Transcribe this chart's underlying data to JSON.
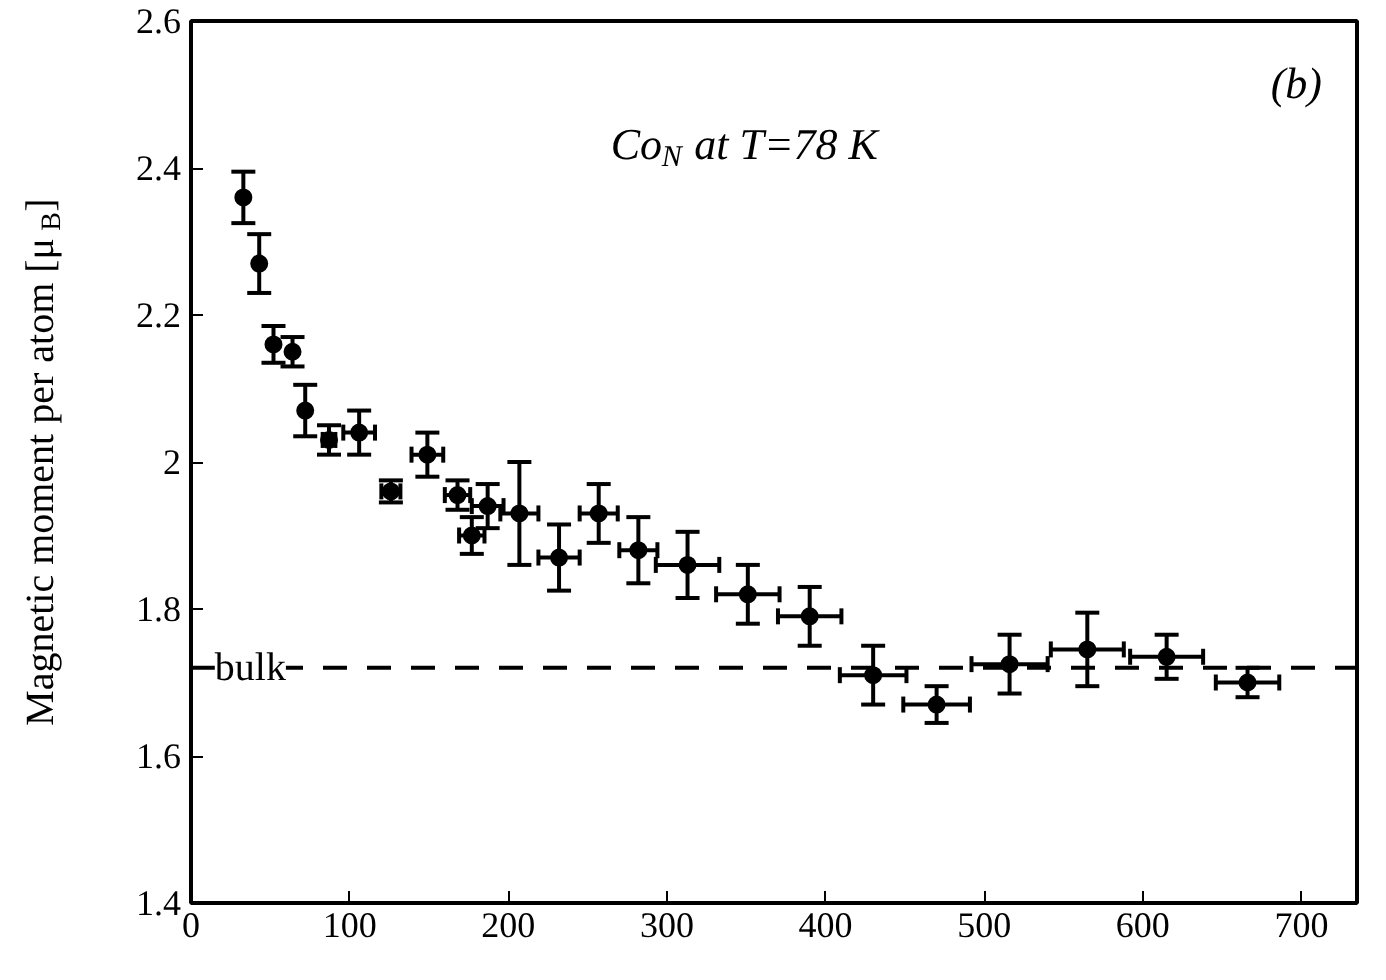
{
  "chart_data": {
    "type": "scatter",
    "ylabel": "Magnetic moment per atom [μ$_{B}$]",
    "annotations": [
      "(b)",
      "Co$_{N}$ at T=78 K"
    ],
    "x": [
      33,
      43,
      52,
      64,
      72,
      87,
      106,
      126,
      149,
      168,
      177,
      187,
      207,
      232,
      257,
      282,
      313,
      351,
      390,
      430,
      470,
      516,
      565,
      615,
      666
    ],
    "series": [
      {
        "color": "#000000",
        "values": [
          2.36,
          2.27,
          2.16,
          2.15,
          2.07,
          2.03,
          2.04,
          1.96,
          2.01,
          1.955,
          1.9,
          1.94,
          1.93,
          1.87,
          1.93,
          1.88,
          1.86,
          1.82,
          1.79,
          1.71,
          1.67,
          1.725,
          1.745,
          1.735,
          1.7
        ],
        "errors": [
          0.035,
          0.04,
          0.025,
          0.02,
          0.035,
          0.02,
          0.03,
          0.015,
          0.03,
          0.02,
          0.025,
          0.03,
          0.07,
          0.045,
          0.04,
          0.045,
          0.045,
          0.04,
          0.04,
          0.04,
          0.025,
          0.04,
          0.05,
          0.03,
          0.02
        ],
        "xerrors": [
          null,
          null,
          null,
          null,
          null,
          4,
          10,
          6,
          10,
          8,
          8,
          10,
          12,
          13,
          12,
          12,
          20,
          20,
          20,
          21,
          21,
          24,
          23,
          23,
          20
        ]
      }
    ],
    "xlim": [
      0,
      735
    ],
    "ylim": [
      1.4,
      2.6
    ],
    "xticks": [
      0,
      100,
      200,
      300,
      400,
      500,
      600,
      700
    ],
    "yticks": [
      1.4,
      1.6,
      1.8,
      2.0,
      2.2,
      2.4,
      2.6
    ],
    "ref_lines": [
      {
        "axis": "y",
        "value": 1.72,
        "label": "bulk",
        "line_style": "dashed",
        "color": "#000000"
      }
    ],
    "marker": "circle",
    "grid": false
  }
}
